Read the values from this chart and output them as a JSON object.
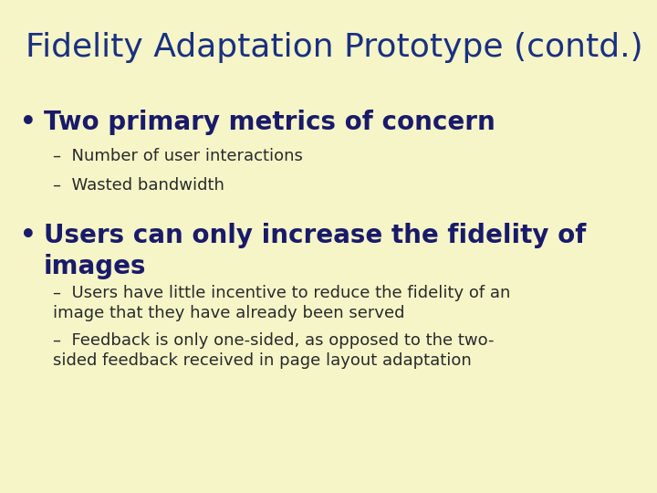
{
  "background_color": "#f5f5c8",
  "title": "Fidelity Adaptation Prototype (contd.)",
  "title_color": "#1a3080",
  "title_fontsize": 26,
  "title_bold": false,
  "bullet1_text": "Two primary metrics of concern",
  "bullet1_fontsize": 20,
  "bullet1_color": "#1a1a6a",
  "bullet1_bold": true,
  "bullet1_sub": [
    "Number of user interactions",
    "Wasted bandwidth"
  ],
  "bullet2_text": "Users can only increase the fidelity of\nimages",
  "bullet2_fontsize": 20,
  "bullet2_color": "#1a1a6a",
  "bullet2_bold": true,
  "bullet2_sub": [
    "Users have little incentive to reduce the fidelity of an\nimage that they have already been served",
    "Feedback is only one-sided, as opposed to the two-\nsided feedback received in page layout adaptation"
  ],
  "sub_fontsize": 13,
  "sub_color": "#2a2a2a",
  "bullet_marker": "•",
  "dash_marker": "–"
}
